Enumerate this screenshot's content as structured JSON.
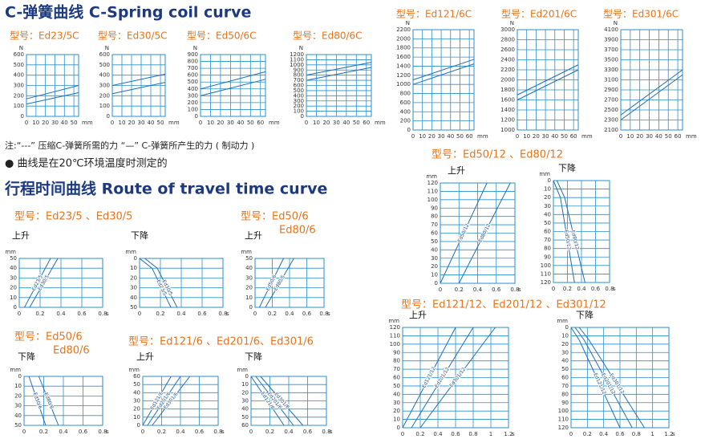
{
  "header": {
    "spring_title": "C-弹簧曲线  C-Spring coil curve",
    "travel_title": "行程时间曲线  Route of travel time curve"
  },
  "notes": [
    "注:“---” 压缩C-弹簧所需的力    “—” C-弹簧所产生的力 ( 制动力 )",
    "● 曲线是在20℃环境温度时测定的"
  ],
  "groups": [
    {
      "lines": [
        "型号：Ed23/5 、Ed30/5"
      ]
    },
    {
      "lines": [
        "型号：Ed50/6",
        "Ed80/6"
      ]
    },
    {
      "lines": [
        "型号：Ed50/6",
        "Ed80/6"
      ]
    },
    {
      "lines": [
        "型号：Ed121/6 、Ed201/6、Ed301/6"
      ]
    },
    {
      "lines": [
        "型号：Ed50/12 、Ed80/12"
      ]
    },
    {
      "lines": [
        "型号：Ed121/12、Ed201/12 、Ed301/12"
      ]
    }
  ],
  "chart_data": [
    {
      "type": "line",
      "title": "型号：Ed23/5C",
      "y_label": "N",
      "x_label": "mm",
      "x": [
        0,
        55
      ],
      "series": [
        {
          "color": "#1f6fb5",
          "values": [
            120,
            230
          ]
        },
        {
          "color": "#1f6fb5",
          "values": [
            170,
            300
          ]
        }
      ],
      "xlim": [
        0,
        55
      ],
      "xticks": [
        0,
        10,
        20,
        30,
        40,
        50
      ],
      "ylim": [
        0,
        600
      ],
      "yticks": [
        0,
        100,
        200,
        300,
        400,
        500,
        600
      ],
      "grid": true
    },
    {
      "type": "line",
      "title": "型号：Ed30/5C",
      "y_label": "N",
      "x_label": "mm",
      "x": [
        0,
        55
      ],
      "series": [
        {
          "color": "#1f6fb5",
          "values": [
            220,
            330
          ]
        },
        {
          "color": "#1f6fb5",
          "values": [
            300,
            410
          ]
        }
      ],
      "xlim": [
        0,
        55
      ],
      "xticks": [
        0,
        10,
        20,
        30,
        40,
        50
      ],
      "ylim": [
        0,
        600
      ],
      "yticks": [
        0,
        100,
        200,
        300,
        400,
        500,
        600
      ],
      "grid": true
    },
    {
      "type": "line",
      "title": "型号：Ed50/6C",
      "y_label": "N",
      "x_label": "mm",
      "x": [
        0,
        65
      ],
      "series": [
        {
          "color": "#1f6fb5",
          "values": [
            300,
            540
          ]
        },
        {
          "color": "#1f6fb5",
          "values": [
            400,
            650
          ]
        }
      ],
      "xlim": [
        0,
        65
      ],
      "xticks": [
        0,
        10,
        20,
        30,
        40,
        50,
        60
      ],
      "ylim": [
        0,
        900
      ],
      "yticks": [
        0,
        100,
        200,
        300,
        400,
        500,
        600,
        700,
        800,
        900
      ],
      "grid": true
    },
    {
      "type": "line",
      "title": "型号：Ed80/6C",
      "y_label": "N",
      "x_label": "mm",
      "x": [
        0,
        65
      ],
      "series": [
        {
          "color": "#1f6fb5",
          "values": [
            700,
            950
          ]
        },
        {
          "color": "#1f6fb5",
          "values": [
            800,
            1050
          ]
        }
      ],
      "xlim": [
        0,
        65
      ],
      "xticks": [
        0,
        10,
        20,
        30,
        40,
        50,
        60
      ],
      "ylim": [
        0,
        1200
      ],
      "yticks": [
        0,
        100,
        200,
        300,
        400,
        500,
        600,
        700,
        800,
        900,
        1000,
        1100,
        1200
      ],
      "grid": true
    },
    {
      "type": "line",
      "title": "型号：Ed121/6C",
      "y_label": "N",
      "x_label": "mm",
      "x": [
        0,
        65
      ],
      "series": [
        {
          "color": "#1f6fb5",
          "values": [
            1000,
            1450
          ]
        },
        {
          "color": "#1f6fb5",
          "values": [
            1100,
            1550
          ]
        }
      ],
      "xlim": [
        0,
        65
      ],
      "xticks": [
        0,
        10,
        20,
        30,
        40,
        50,
        60
      ],
      "ylim": [
        0,
        2200
      ],
      "yticks": [
        0,
        200,
        400,
        600,
        800,
        1000,
        1200,
        1400,
        1600,
        1800,
        2000,
        2200
      ],
      "grid": true
    },
    {
      "type": "line",
      "title": "型号：Ed201/6C",
      "y_label": "N",
      "x_label": "mm",
      "x": [
        0,
        65
      ],
      "series": [
        {
          "color": "#1f6fb5",
          "values": [
            1600,
            2200
          ]
        },
        {
          "color": "#1f6fb5",
          "values": [
            1700,
            2300
          ]
        }
      ],
      "xlim": [
        0,
        65
      ],
      "xticks": [
        0,
        10,
        20,
        30,
        40,
        50,
        60
      ],
      "ylim": [
        1000,
        3000
      ],
      "yticks": [
        1000,
        1200,
        1400,
        1600,
        1800,
        2000,
        2200,
        2400,
        2600,
        2800,
        3000
      ],
      "grid": true
    },
    {
      "type": "line",
      "title": "型号：Ed301/6C",
      "y_label": "N",
      "x_label": "mm",
      "x": [
        0,
        65
      ],
      "series": [
        {
          "color": "#1f6fb5",
          "values": [
            2300,
            3200
          ]
        },
        {
          "color": "#1f6fb5",
          "values": [
            2400,
            3300
          ]
        }
      ],
      "xlim": [
        0,
        65
      ],
      "xticks": [
        0,
        10,
        20,
        30,
        40,
        50,
        60
      ],
      "ylim": [
        2100,
        4100
      ],
      "yticks": [
        2100,
        2300,
        2500,
        2700,
        2900,
        3100,
        3300,
        3500,
        3700,
        3900,
        4100
      ],
      "grid": true
    },
    {
      "type": "line",
      "title": "上升",
      "y_label": "mm",
      "x_label": "s",
      "y_inverted": false,
      "series": [
        {
          "name": "Ed23/5",
          "color": "#1f6fb5",
          "x": [
            0.05,
            0.3
          ],
          "values": [
            0,
            50
          ]
        },
        {
          "name": "Ed30/5",
          "color": "#1f6fb5",
          "x": [
            0.1,
            0.37
          ],
          "values": [
            0,
            50
          ]
        }
      ],
      "xlim": [
        0,
        0.8
      ],
      "xticks": [
        0,
        0.2,
        0.4,
        0.6,
        0.8
      ],
      "ylim": [
        0,
        50
      ],
      "yticks": [
        0,
        10,
        20,
        30,
        40,
        50
      ],
      "grid": true
    },
    {
      "type": "line",
      "title": "下降",
      "y_label": "mm",
      "x_label": "s",
      "y_inverted": true,
      "series": [
        {
          "name": "Ed23/5",
          "color": "#1f6fb5",
          "x": [
            0,
            0.12,
            0.3
          ],
          "values": [
            0,
            10,
            50
          ]
        },
        {
          "name": "Ed30/5",
          "color": "#1f6fb5",
          "x": [
            0.05,
            0.17,
            0.36
          ],
          "values": [
            0,
            10,
            50
          ]
        }
      ],
      "xlim": [
        0,
        0.8
      ],
      "xticks": [
        0,
        0.2,
        0.4,
        0.6,
        0.8
      ],
      "ylim": [
        0,
        50
      ],
      "yticks": [
        0,
        10,
        20,
        30,
        40,
        50
      ],
      "grid": true
    },
    {
      "type": "line",
      "title": "上升",
      "y_label": "mm",
      "x_label": "s",
      "y_inverted": false,
      "series": [
        {
          "name": "Ed50/6",
          "color": "#1f6fb5",
          "x": [
            0.05,
            0.33
          ],
          "values": [
            0,
            50
          ]
        },
        {
          "name": "Ed80/6",
          "color": "#1f6fb5",
          "x": [
            0.12,
            0.45
          ],
          "values": [
            0,
            50
          ]
        }
      ],
      "xlim": [
        0,
        0.8
      ],
      "xticks": [
        0,
        0.2,
        0.4,
        0.6,
        0.8
      ],
      "ylim": [
        0,
        50
      ],
      "yticks": [
        0,
        10,
        20,
        30,
        40,
        50
      ],
      "grid": true
    },
    {
      "type": "line",
      "title": "下降",
      "y_label": "mm",
      "x_label": "s",
      "y_inverted": true,
      "series": [
        {
          "name": "Ed50/6",
          "color": "#1f6fb5",
          "x": [
            0.05,
            0.22
          ],
          "values": [
            0,
            50
          ]
        },
        {
          "name": "Ed80/6",
          "color": "#1f6fb5",
          "x": [
            0.15,
            0.35
          ],
          "values": [
            0,
            50
          ]
        }
      ],
      "xlim": [
        0,
        0.8
      ],
      "xticks": [
        0,
        0.2,
        0.4,
        0.6,
        0.8
      ],
      "ylim": [
        0,
        50
      ],
      "yticks": [
        0,
        10,
        20,
        30,
        40,
        50
      ],
      "grid": true
    },
    {
      "type": "line",
      "title": "上升",
      "y_label": "mm",
      "x_label": "s",
      "y_inverted": false,
      "series": [
        {
          "name": "Ed121/6",
          "color": "#1f6fb5",
          "x": [
            0,
            0.3
          ],
          "values": [
            0,
            60
          ]
        },
        {
          "name": "Ed201/6",
          "color": "#1f6fb5",
          "x": [
            0.05,
            0.4
          ],
          "values": [
            0,
            60
          ]
        },
        {
          "name": "Ed301/6",
          "color": "#1f6fb5",
          "x": [
            0.1,
            0.5
          ],
          "values": [
            0,
            60
          ]
        }
      ],
      "xlim": [
        0,
        0.8
      ],
      "xticks": [
        0,
        0.2,
        0.4,
        0.6,
        0.8
      ],
      "ylim": [
        0,
        60
      ],
      "yticks": [
        0,
        10,
        20,
        30,
        40,
        50,
        60
      ],
      "grid": true
    },
    {
      "type": "line",
      "title": "下降",
      "y_label": "mm",
      "x_label": "s",
      "y_inverted": true,
      "series": [
        {
          "name": "Ed121/6",
          "color": "#1f6fb5",
          "x": [
            0,
            0.35
          ],
          "values": [
            0,
            60
          ]
        },
        {
          "name": "Ed201/6",
          "color": "#1f6fb5",
          "x": [
            0.05,
            0.45
          ],
          "values": [
            0,
            60
          ]
        },
        {
          "name": "Ed301/6",
          "color": "#1f6fb5",
          "x": [
            0.1,
            0.55
          ],
          "values": [
            0,
            60
          ]
        }
      ],
      "xlim": [
        0,
        0.8
      ],
      "xticks": [
        0,
        0.2,
        0.4,
        0.6,
        0.8
      ],
      "ylim": [
        0,
        60
      ],
      "yticks": [
        0,
        10,
        20,
        30,
        40,
        50,
        60
      ],
      "grid": true
    },
    {
      "type": "line",
      "title": "上升",
      "y_label": "mm",
      "x_label": "s",
      "y_inverted": false,
      "series": [
        {
          "name": "Ed50/12",
          "color": "#1f6fb5",
          "x": [
            0,
            0.5
          ],
          "values": [
            0,
            120
          ]
        },
        {
          "name": "Ed80/12",
          "color": "#1f6fb5",
          "x": [
            0.2,
            0.75
          ],
          "values": [
            0,
            120
          ]
        }
      ],
      "xlim": [
        0,
        0.8
      ],
      "xticks": [
        0,
        0.2,
        0.4,
        0.6,
        0.8
      ],
      "ylim": [
        0,
        120
      ],
      "yticks": [
        0,
        10,
        20,
        30,
        40,
        50,
        60,
        70,
        80,
        90,
        100,
        110,
        120
      ],
      "grid": true
    },
    {
      "type": "line",
      "title": "下降",
      "y_label": "mm",
      "x_label": "s",
      "y_inverted": true,
      "series": [
        {
          "name": "Ed50/12",
          "color": "#1f6fb5",
          "x": [
            0,
            0.1,
            0.3
          ],
          "values": [
            0,
            20,
            120
          ]
        },
        {
          "name": "Ed80/12",
          "color": "#1f6fb5",
          "x": [
            0.05,
            0.16,
            0.45
          ],
          "values": [
            0,
            20,
            120
          ]
        }
      ],
      "xlim": [
        0,
        0.8
      ],
      "xticks": [
        0,
        0.2,
        0.4,
        0.6,
        0.8
      ],
      "ylim": [
        0,
        120
      ],
      "yticks": [
        0,
        10,
        20,
        30,
        40,
        50,
        60,
        70,
        80,
        90,
        100,
        110,
        120
      ],
      "grid": true
    },
    {
      "type": "line",
      "title": "上升",
      "y_label": "mm",
      "x_label": "s",
      "y_inverted": false,
      "series": [
        {
          "name": "Ed121/12",
          "color": "#1f6fb5",
          "x": [
            0,
            0.6
          ],
          "values": [
            0,
            120
          ]
        },
        {
          "name": "Ed201/12",
          "color": "#1f6fb5",
          "x": [
            0.1,
            0.8
          ],
          "values": [
            0,
            120
          ]
        },
        {
          "name": "Ed301/12",
          "color": "#1f6fb5",
          "x": [
            0.2,
            1.05
          ],
          "values": [
            0,
            120
          ]
        }
      ],
      "xlim": [
        0,
        1.2
      ],
      "xticks": [
        0,
        0.2,
        0.4,
        0.6,
        0.8,
        1,
        1.2
      ],
      "ylim": [
        0,
        120
      ],
      "yticks": [
        0,
        10,
        20,
        30,
        40,
        50,
        60,
        70,
        80,
        90,
        100,
        110,
        120
      ],
      "grid": true
    },
    {
      "type": "line",
      "title": "下降",
      "y_label": "mm",
      "x_label": "s",
      "y_inverted": true,
      "series": [
        {
          "name": "Ed121/12",
          "color": "#1f6fb5",
          "x": [
            0,
            0.1,
            0.6
          ],
          "values": [
            0,
            15,
            120
          ]
        },
        {
          "name": "Ed201/12",
          "color": "#1f6fb5",
          "x": [
            0.05,
            0.16,
            0.75
          ],
          "values": [
            0,
            15,
            120
          ]
        },
        {
          "name": "Ed301/12",
          "color": "#1f6fb5",
          "x": [
            0.1,
            0.22,
            0.9
          ],
          "values": [
            0,
            15,
            120
          ]
        }
      ],
      "xlim": [
        0,
        1.2
      ],
      "xticks": [
        0,
        0.2,
        0.4,
        0.6,
        0.8,
        1,
        1.2
      ],
      "ylim": [
        0,
        120
      ],
      "yticks": [
        0,
        10,
        20,
        30,
        40,
        50,
        60,
        70,
        80,
        90,
        100,
        110,
        120
      ],
      "grid": true
    }
  ]
}
